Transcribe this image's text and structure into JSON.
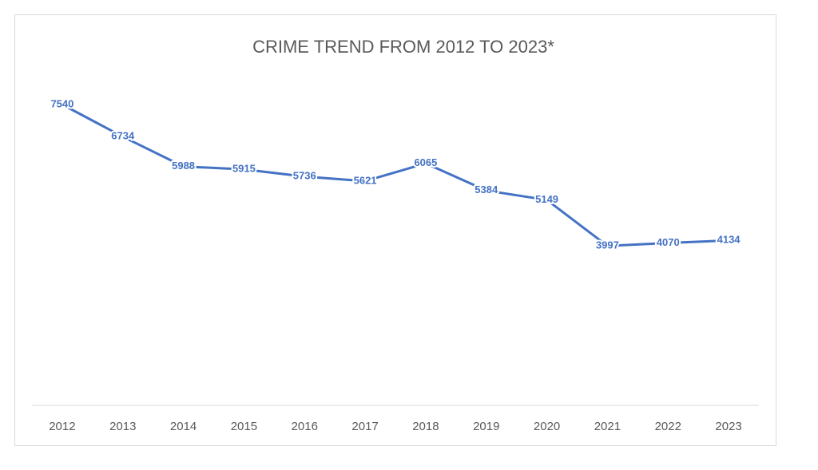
{
  "chart_data": {
    "type": "line",
    "title": "CRIME TREND FROM 2012 TO 2023*",
    "categories": [
      "2012",
      "2013",
      "2014",
      "2015",
      "2016",
      "2017",
      "2018",
      "2019",
      "2020",
      "2021",
      "2022",
      "2023"
    ],
    "series": [
      {
        "color": "#4472c4",
        "values": [
          7540,
          6734,
          5988,
          5915,
          5736,
          5621,
          6065,
          5384,
          5149,
          3997,
          4070,
          4134
        ]
      }
    ],
    "ylim": [
      0,
      8000
    ],
    "data_labels": true
  }
}
